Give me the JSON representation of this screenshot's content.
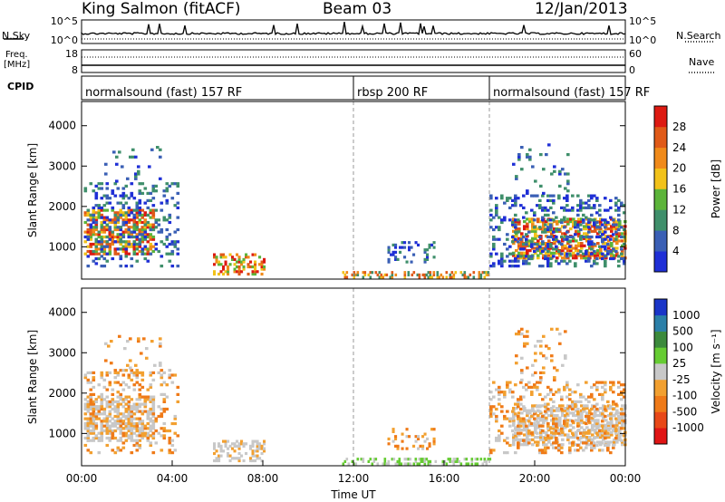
{
  "header": {
    "station": "King Salmon (fitACF)",
    "beam": "Beam 03",
    "date": "12/Jan/2013"
  },
  "noise_panel": {
    "left_label": "N.Sky",
    "right_label": "N.Search",
    "left_ticks": [
      "10^5",
      "10^0"
    ],
    "right_ticks": [
      "10^5",
      "10^0"
    ]
  },
  "freq_panel": {
    "left_label_1": "Freq.",
    "left_label_2": "[MHz]",
    "right_label": "Nave",
    "left_ticks": [
      "18",
      "8"
    ],
    "right_ticks": [
      "60",
      "0"
    ],
    "frequency_mhz": [
      8,
      18
    ],
    "nave": [
      0,
      60
    ]
  },
  "cpid": {
    "label": "CPID",
    "segments": [
      {
        "label": "normalsound (fast) 157 RF",
        "start_hour": 0,
        "end_hour": 12
      },
      {
        "label": "rbsp 200 RF",
        "start_hour": 12,
        "end_hour": 18
      },
      {
        "label": "normalsound (fast) 157 RF",
        "start_hour": 18,
        "end_hour": 24
      }
    ]
  },
  "chart_data": [
    {
      "type": "heatmap",
      "name": "power",
      "ylabel": "Slant Range [km]",
      "yticks": [
        "1000",
        "2000",
        "3000",
        "4000"
      ],
      "ylim": [
        200,
        4600
      ],
      "xlim_hours": [
        0,
        24
      ],
      "colorbar": {
        "label": "Power [dB]",
        "ticks": [
          "4",
          "8",
          "12",
          "16",
          "20",
          "24",
          "28"
        ],
        "colors": [
          "#1f2fd6",
          "#3a5fb5",
          "#3f8f6b",
          "#5cb43a",
          "#f2c21a",
          "#f08a1a",
          "#e05a18",
          "#dd1a12"
        ]
      },
      "regions": [
        {
          "label": "morning arc",
          "x_hours": [
            0.0,
            3.3
          ],
          "range_km": [
            800,
            1900
          ],
          "level_db": 16
        },
        {
          "label": "nightside scatter",
          "x_hours": [
            5.8,
            8.0
          ],
          "range_km": [
            300,
            800
          ],
          "level_db": 20
        },
        {
          "label": "evening arc",
          "x_hours": [
            19.0,
            24.0
          ],
          "range_km": [
            700,
            2200
          ],
          "level_db": 18
        }
      ]
    },
    {
      "type": "heatmap",
      "name": "velocity",
      "ylabel": "Slant Range [km]",
      "yticks": [
        "1000",
        "2000",
        "3000",
        "4000"
      ],
      "ylim": [
        200,
        4600
      ],
      "xlim_hours": [
        0,
        24
      ],
      "colorbar": {
        "label": "Velocity [m s⁻¹]",
        "ticks": [
          "1000",
          "500",
          "100",
          "25",
          "-25",
          "-100",
          "-500",
          "-1000"
        ],
        "colors": [
          "#1a35c8",
          "#2b7fa8",
          "#3c8a3c",
          "#66cc33",
          "#c8c8c8",
          "#f2a030",
          "#ef7a18",
          "#e84818",
          "#e01515"
        ]
      }
    }
  ],
  "x_axis": {
    "ticks": [
      "00:00",
      "04:00",
      "08:00",
      "12:00",
      "16:00",
      "20:00",
      "00:00"
    ],
    "label": "Time UT"
  }
}
